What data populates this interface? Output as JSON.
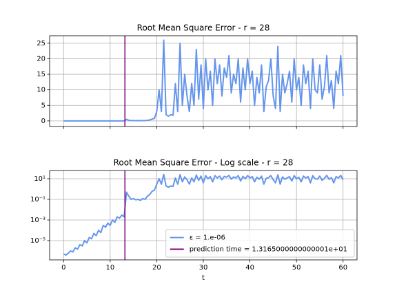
{
  "chart_data": [
    {
      "type": "line",
      "title": "Root Mean Square Error - r = 28",
      "x": [
        0,
        0.5,
        1,
        1.5,
        2,
        2.5,
        3,
        3.5,
        4,
        4.5,
        5,
        5.5,
        6,
        6.5,
        7,
        7.5,
        8,
        8.5,
        9,
        9.5,
        10,
        10.5,
        11,
        11.5,
        12,
        12.5,
        13,
        13.5,
        14,
        14.5,
        15,
        15.5,
        16,
        16.5,
        17,
        17.5,
        18,
        18.5,
        19,
        19.5,
        20,
        20.5,
        21,
        21.5,
        22,
        22.5,
        23,
        23.5,
        24,
        24.5,
        25,
        25.5,
        26,
        26.5,
        27,
        27.5,
        28,
        28.5,
        29,
        29.5,
        30,
        30.5,
        31,
        31.5,
        32,
        32.5,
        33,
        33.5,
        34,
        34.5,
        35,
        35.5,
        36,
        36.5,
        37,
        37.5,
        38,
        38.5,
        39,
        39.5,
        40,
        40.5,
        41,
        41.5,
        42,
        42.5,
        43,
        43.5,
        44,
        44.5,
        45,
        45.5,
        46,
        46.5,
        47,
        47.5,
        48,
        48.5,
        49,
        49.5,
        50,
        50.5,
        51,
        51.5,
        52,
        52.5,
        53,
        53.5,
        54,
        54.5,
        55,
        55.5,
        56,
        56.5,
        57,
        57.5,
        58,
        58.5,
        59,
        59.5,
        60
      ],
      "series": [
        {
          "color": "#6495ed",
          "values": [
            5e-07,
            4e-07,
            6e-07,
            1e-06,
            8e-07,
            2e-06,
            1.5e-06,
            4e-06,
            3e-06,
            1e-05,
            6e-06,
            2e-05,
            1.5e-05,
            5e-05,
            3e-05,
            0.0001,
            6e-05,
            0.0003,
            0.0002,
            0.0005,
            0.0003,
            0.001,
            0.0006,
            0.002,
            0.0015,
            0.003,
            0.002,
            0.5,
            0.2,
            0.1,
            0.12,
            0.09,
            0.1,
            0.08,
            0.12,
            0.1,
            0.2,
            0.3,
            0.6,
            0.8,
            3,
            10,
            3,
            26,
            2,
            1.5,
            2,
            1.8,
            12,
            3,
            25,
            5,
            15,
            8,
            3,
            12,
            5,
            23,
            7,
            18,
            4,
            20,
            10,
            16,
            5,
            20,
            12,
            18,
            8,
            17,
            14,
            21,
            9,
            15,
            12,
            20,
            6,
            17,
            10,
            20,
            12,
            16,
            5,
            14,
            9,
            18,
            3,
            11,
            13,
            20,
            8,
            4,
            24,
            3,
            15,
            9,
            12,
            16,
            6,
            20,
            10,
            14,
            5,
            18,
            12,
            16,
            4,
            20,
            10,
            9,
            18,
            7,
            11,
            21,
            9,
            13,
            4,
            16,
            12,
            21,
            8
          ]
        }
      ],
      "vline": {
        "x": 13.165,
        "color": "#800080"
      },
      "xlim": [
        -3,
        63
      ],
      "xticks": [
        0,
        10,
        20,
        30,
        40,
        50,
        60
      ],
      "show_xtick_labels": false,
      "ylim": [
        -1.8,
        27.4
      ],
      "yticks": [
        0,
        5,
        10,
        15,
        20,
        25
      ],
      "grid": true
    },
    {
      "type": "line",
      "title": "Root Mean Square Error - Log scale - r = 28",
      "xlabel": "t",
      "x": [
        0,
        0.5,
        1,
        1.5,
        2,
        2.5,
        3,
        3.5,
        4,
        4.5,
        5,
        5.5,
        6,
        6.5,
        7,
        7.5,
        8,
        8.5,
        9,
        9.5,
        10,
        10.5,
        11,
        11.5,
        12,
        12.5,
        13,
        13.5,
        14,
        14.5,
        15,
        15.5,
        16,
        16.5,
        17,
        17.5,
        18,
        18.5,
        19,
        19.5,
        20,
        20.5,
        21,
        21.5,
        22,
        22.5,
        23,
        23.5,
        24,
        24.5,
        25,
        25.5,
        26,
        26.5,
        27,
        27.5,
        28,
        28.5,
        29,
        29.5,
        30,
        30.5,
        31,
        31.5,
        32,
        32.5,
        33,
        33.5,
        34,
        34.5,
        35,
        35.5,
        36,
        36.5,
        37,
        37.5,
        38,
        38.5,
        39,
        39.5,
        40,
        40.5,
        41,
        41.5,
        42,
        42.5,
        43,
        43.5,
        44,
        44.5,
        45,
        45.5,
        46,
        46.5,
        47,
        47.5,
        48,
        48.5,
        49,
        49.5,
        50,
        50.5,
        51,
        51.5,
        52,
        52.5,
        53,
        53.5,
        54,
        54.5,
        55,
        55.5,
        56,
        56.5,
        57,
        57.5,
        58,
        58.5,
        59,
        59.5,
        60
      ],
      "series": [
        {
          "name": "ε = 1.e-06",
          "color": "#6495ed",
          "values": [
            5e-07,
            4e-07,
            6e-07,
            1e-06,
            8e-07,
            2e-06,
            1.5e-06,
            4e-06,
            3e-06,
            1e-05,
            6e-06,
            2e-05,
            1.5e-05,
            5e-05,
            3e-05,
            0.0001,
            6e-05,
            0.0003,
            0.0002,
            0.0005,
            0.0003,
            0.001,
            0.0006,
            0.002,
            0.0015,
            0.003,
            0.002,
            0.5,
            0.2,
            0.1,
            0.12,
            0.09,
            0.1,
            0.08,
            0.12,
            0.1,
            0.2,
            0.3,
            0.6,
            0.8,
            3,
            10,
            3,
            26,
            2,
            1.5,
            2,
            1.8,
            12,
            3,
            25,
            5,
            15,
            8,
            3,
            12,
            5,
            23,
            7,
            18,
            4,
            20,
            10,
            16,
            5,
            20,
            12,
            18,
            8,
            17,
            14,
            21,
            9,
            15,
            12,
            20,
            6,
            17,
            10,
            20,
            12,
            16,
            5,
            14,
            9,
            18,
            3,
            11,
            13,
            20,
            8,
            4,
            24,
            3,
            15,
            9,
            12,
            16,
            6,
            20,
            10,
            14,
            5,
            18,
            12,
            16,
            4,
            20,
            10,
            9,
            18,
            7,
            11,
            21,
            9,
            13,
            4,
            16,
            12,
            21,
            8
          ]
        }
      ],
      "vline": {
        "name": "prediction time = 1.3165000000000001e+01",
        "x": 13.165,
        "color": "#800080"
      },
      "xlim": [
        -3,
        63
      ],
      "xticks": [
        0,
        10,
        20,
        30,
        40,
        50,
        60
      ],
      "show_xtick_labels": true,
      "ylim": [
        1.35e-07,
        63
      ],
      "log_y": true,
      "yticks": [
        {
          "value": 1e-05,
          "label": "10⁻⁵"
        },
        {
          "value": 0.001,
          "label": "10⁻³"
        },
        {
          "value": 0.1,
          "label": "10⁻¹"
        },
        {
          "value": 10,
          "label": "10¹"
        }
      ],
      "grid": true,
      "legend": "lower right"
    }
  ]
}
